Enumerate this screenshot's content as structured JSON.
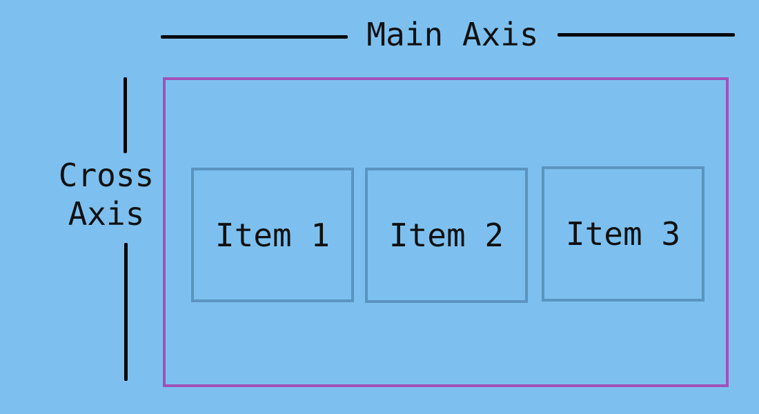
{
  "diagram": {
    "main_axis_label": "Main Axis",
    "cross_axis_label_line1": "Cross",
    "cross_axis_label_line2": "Axis",
    "items": [
      {
        "label": "Item 1"
      },
      {
        "label": "Item 2"
      },
      {
        "label": "Item 3"
      }
    ]
  },
  "colors": {
    "background": "#7dc0ef",
    "container_border": "#a250b8",
    "item_border": "#5a94c0",
    "axis_line": "#050505",
    "text": "#111111"
  }
}
